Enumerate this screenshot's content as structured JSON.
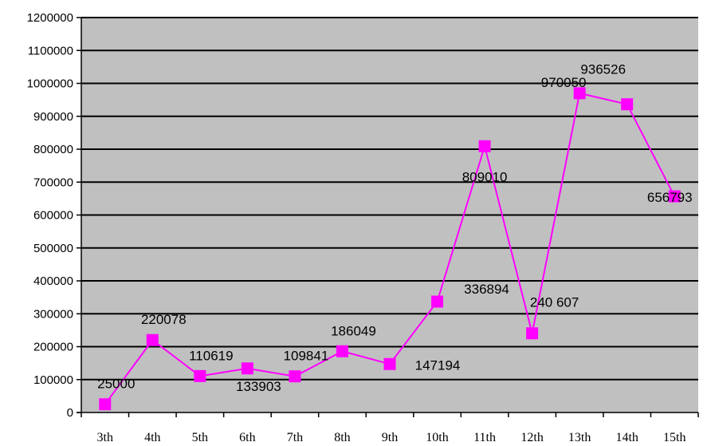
{
  "chart_data": {
    "type": "line",
    "title": "",
    "xlabel": "",
    "ylabel": "",
    "categories": [
      "3th",
      "4th",
      "5th",
      "6th",
      "7th",
      "8th",
      "9th",
      "10th",
      "11th",
      "12th",
      "13th",
      "14th",
      "15th"
    ],
    "series": [
      {
        "values": [
          25000,
          220078,
          110619,
          133903,
          109841,
          186049,
          147194,
          336894,
          809010,
          240607,
          970050,
          936526,
          656793
        ],
        "labels": [
          "25000",
          "220078",
          "110619",
          "133903",
          "109841",
          "186049",
          "147194",
          "336894",
          "809010",
          "240 607",
          "970050",
          "936526",
          "656793"
        ],
        "color": "#ff00ff",
        "marker": "square"
      }
    ],
    "ylim": [
      0,
      1200000
    ],
    "ytick_step": 100000,
    "ytick_labels": [
      "0",
      "100000",
      "200000",
      "300000",
      "400000",
      "500000",
      "600000",
      "700000",
      "800000",
      "900000",
      "1000000",
      "1100000",
      "1200000"
    ],
    "grid": true,
    "legend": "none",
    "plot_background": "#c0c0c0",
    "gridline_color": "#000000"
  }
}
